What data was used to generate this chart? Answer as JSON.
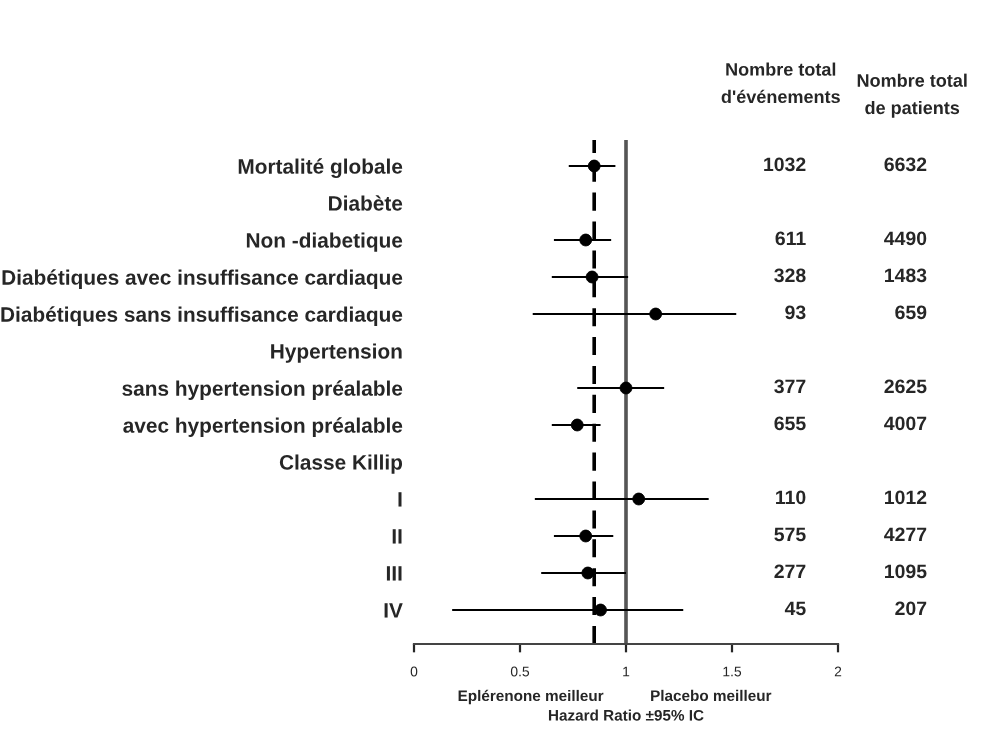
{
  "chart_data": {
    "type": "scatter",
    "orientation": "horizontal",
    "categories": [
      "Mortalité globale",
      "Diabète",
      "Non -diabetique",
      "Diabétiques avec insuffisance cardiaque",
      "Diabétiques sans insuffisance cardiaque",
      "Hypertension",
      "sans hypertension préalable",
      "avec hypertension préalable",
      "Classe Killip",
      "I",
      "II",
      "III",
      "IV"
    ],
    "values": [
      0.85,
      null,
      0.81,
      0.84,
      1.14,
      null,
      1.0,
      0.77,
      null,
      1.06,
      0.81,
      0.82,
      0.88
    ],
    "errors": [
      [
        0.73,
        0.95
      ],
      null,
      [
        0.66,
        0.93
      ],
      [
        0.65,
        1.01
      ],
      [
        0.56,
        1.52
      ],
      null,
      [
        0.77,
        1.18
      ],
      [
        0.65,
        0.88
      ],
      null,
      [
        0.57,
        1.39
      ],
      [
        0.66,
        0.94
      ],
      [
        0.6,
        1.0
      ],
      [
        0.18,
        1.27
      ]
    ],
    "color": "#000000",
    "marker": "circle",
    "xlim": [
      0,
      2
    ],
    "xticks": [
      0,
      0.5,
      1,
      1.5,
      2
    ],
    "xlabel": "Hazard Ratio ±95% IC",
    "ref_lines": [
      {
        "axis": "x",
        "value": 1,
        "color": "#555555",
        "line_style": "solid"
      },
      {
        "axis": "x",
        "value": 0.85,
        "color": "#000000",
        "line_style": "dashed"
      }
    ],
    "annotations": [
      "Nombre total\nd'événements",
      "Nombre total\nde patients",
      "Eplérenone meilleur",
      "Placebo meilleur",
      "1032",
      "6632",
      "611",
      "4490",
      "328",
      "1483",
      "93",
      "659",
      "377",
      "2625",
      "655",
      "4007",
      "110",
      "1012",
      "575",
      "4277",
      "277",
      "1095",
      "45",
      "207"
    ]
  }
}
